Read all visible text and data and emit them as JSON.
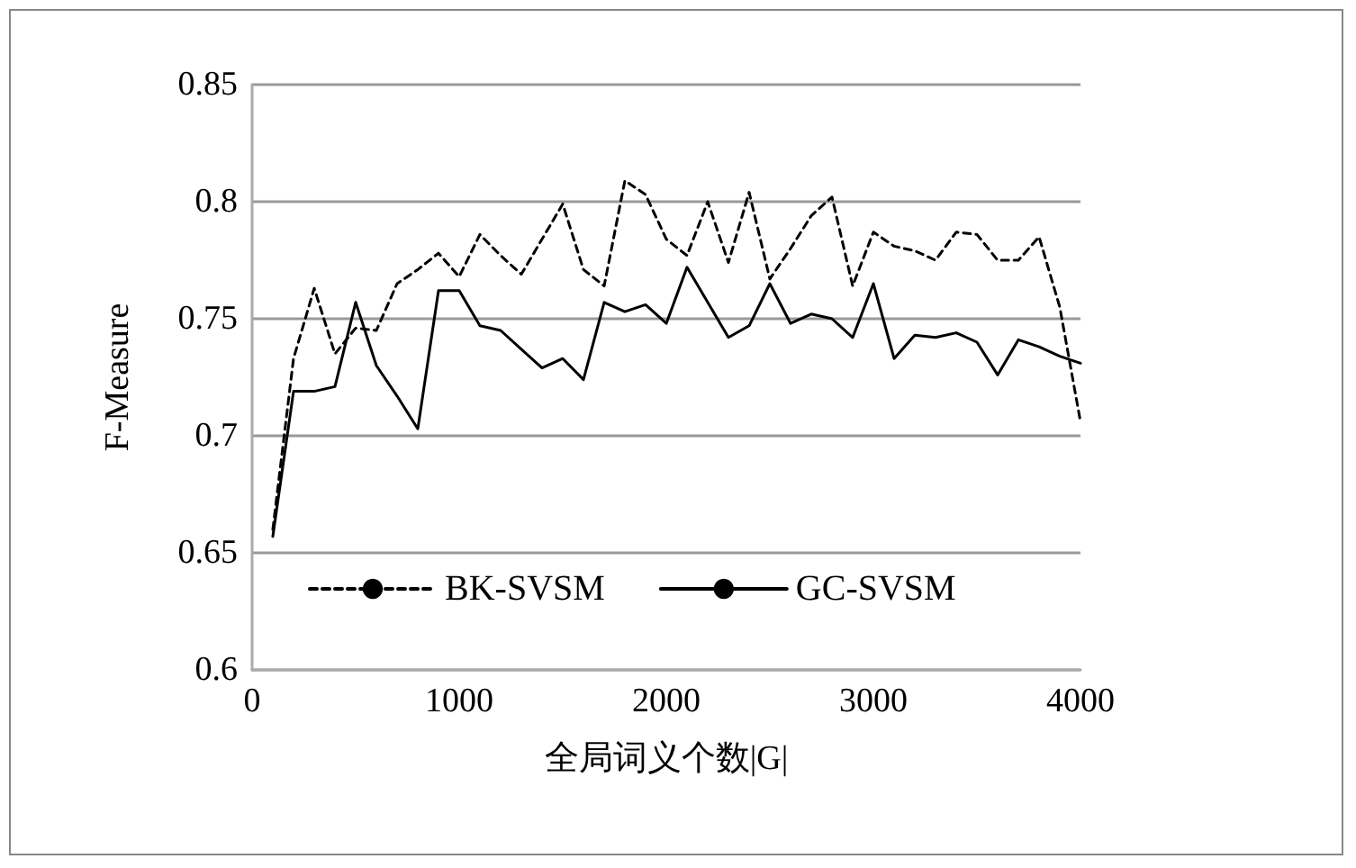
{
  "chart_data": {
    "type": "line",
    "xlabel": "全局词义个数|G|",
    "ylabel": "F-Measure",
    "x": [
      100,
      200,
      300,
      400,
      500,
      600,
      700,
      800,
      900,
      1000,
      1100,
      1200,
      1300,
      1400,
      1500,
      1600,
      1700,
      1800,
      1900,
      2000,
      2100,
      2200,
      2300,
      2400,
      2500,
      2600,
      2700,
      2800,
      2900,
      3000,
      3100,
      3200,
      3300,
      3400,
      3500,
      3600,
      3700,
      3800,
      3900,
      4000
    ],
    "series": [
      {
        "name": "BK-SVSM",
        "color": "#000000",
        "line_style": "dashed",
        "values": [
          0.66,
          0.733,
          0.763,
          0.735,
          0.746,
          0.745,
          0.765,
          0.771,
          0.778,
          0.768,
          0.786,
          0.777,
          0.769,
          0.784,
          0.799,
          0.771,
          0.764,
          0.809,
          0.803,
          0.784,
          0.777,
          0.8,
          0.774,
          0.804,
          0.767,
          0.78,
          0.794,
          0.802,
          0.764,
          0.787,
          0.781,
          0.779,
          0.775,
          0.787,
          0.786,
          0.775,
          0.775,
          0.785,
          0.755,
          0.706
        ]
      },
      {
        "name": "GC-SVSM",
        "color": "#000000",
        "line_style": "solid",
        "values": [
          0.657,
          0.719,
          0.719,
          0.721,
          0.757,
          0.73,
          0.717,
          0.703,
          0.762,
          0.762,
          0.747,
          0.745,
          0.737,
          0.729,
          0.733,
          0.724,
          0.757,
          0.753,
          0.756,
          0.748,
          0.772,
          0.757,
          0.742,
          0.747,
          0.765,
          0.748,
          0.752,
          0.75,
          0.742,
          0.765,
          0.733,
          0.743,
          0.742,
          0.744,
          0.74,
          0.726,
          0.741,
          0.738,
          0.734,
          0.731
        ]
      }
    ],
    "xlim": [
      0,
      4000
    ],
    "xticks": [
      0,
      1000,
      2000,
      3000,
      4000
    ],
    "ylim": [
      0.6,
      0.85
    ],
    "yticks": [
      0.6,
      0.65,
      0.7,
      0.75,
      0.8,
      0.85
    ],
    "grid": "y",
    "legend": "bottom",
    "marker": "none"
  }
}
